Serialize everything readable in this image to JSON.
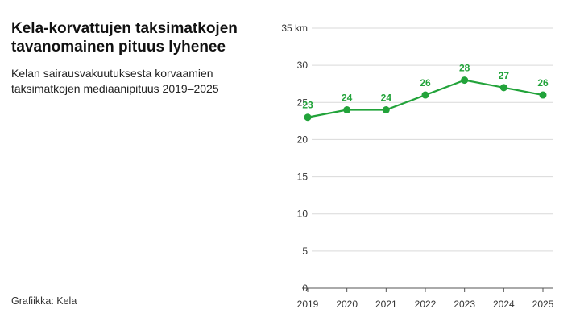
{
  "title": "Kela-korvattujen taksimatkojen tavanomainen pituus lyhenee",
  "subtitle": "Kelan sairausvakuutuksesta korvaamien taksimatkojen mediaanipituus 2019–2025",
  "source": "Grafiikka: Kela",
  "colors": {
    "line": "#22a33a",
    "grid": "#d9d9d9",
    "axis": "#555555"
  },
  "chart_data": {
    "type": "line",
    "x": [
      "2019",
      "2020",
      "2021",
      "2022",
      "2023",
      "2024",
      "2025"
    ],
    "series": [
      {
        "values": [
          23,
          24,
          24,
          26,
          28,
          27,
          26
        ]
      }
    ],
    "ylim": [
      0,
      35
    ],
    "yticks": [
      0,
      5,
      10,
      15,
      20,
      25,
      30,
      35
    ],
    "ytick_labels": [
      "0",
      "5",
      "10",
      "15",
      "20",
      "25",
      "30",
      "35 km"
    ],
    "grid": true,
    "data_labels": [
      "23",
      "24",
      "24",
      "26",
      "28",
      "27",
      "26"
    ]
  }
}
